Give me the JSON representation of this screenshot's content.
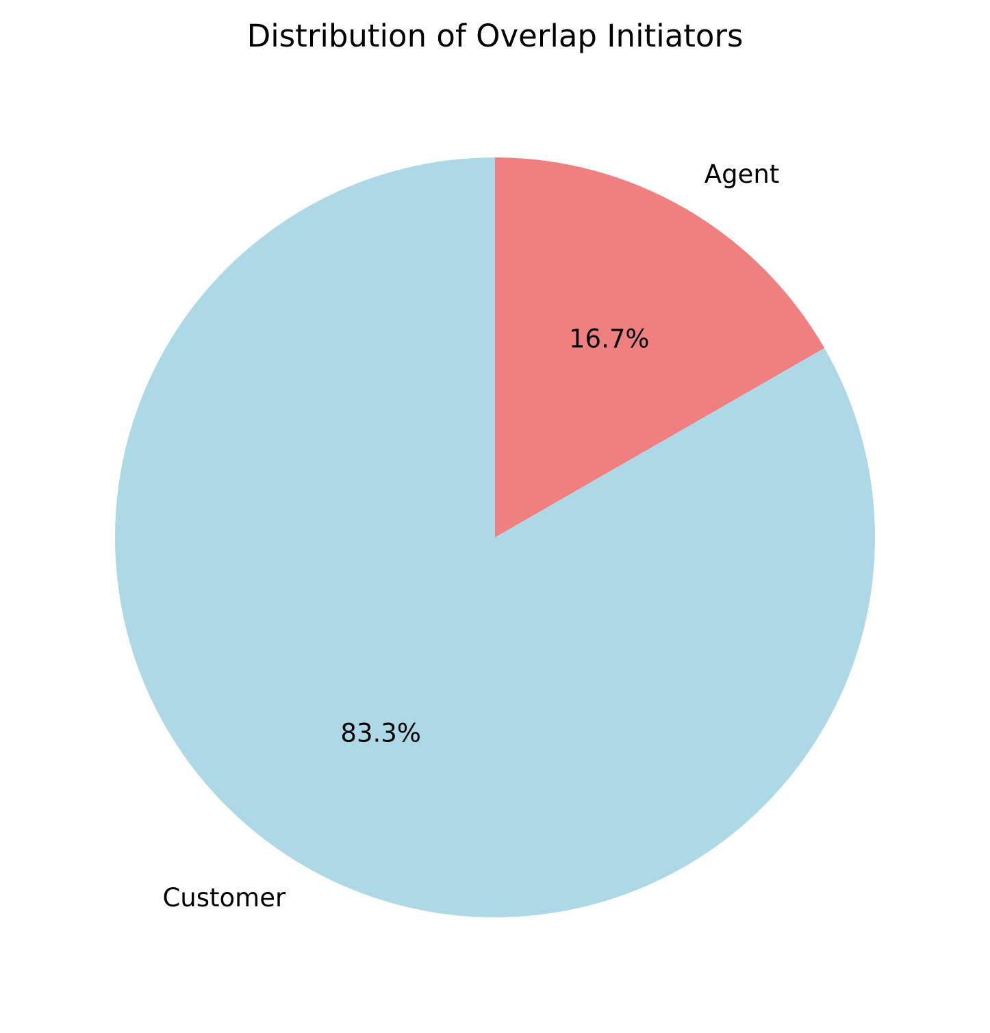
{
  "chart_data": {
    "type": "pie",
    "title": "Distribution of Overlap Initiators",
    "slices": [
      {
        "label": "Agent",
        "value": 16.7,
        "pct_label": "16.7%",
        "color": "#F08080"
      },
      {
        "label": "Customer",
        "value": 83.3,
        "pct_label": "83.3%",
        "color": "#ADD8E6"
      }
    ],
    "start_angle": "90 degrees (top)",
    "direction": "clockwise"
  }
}
